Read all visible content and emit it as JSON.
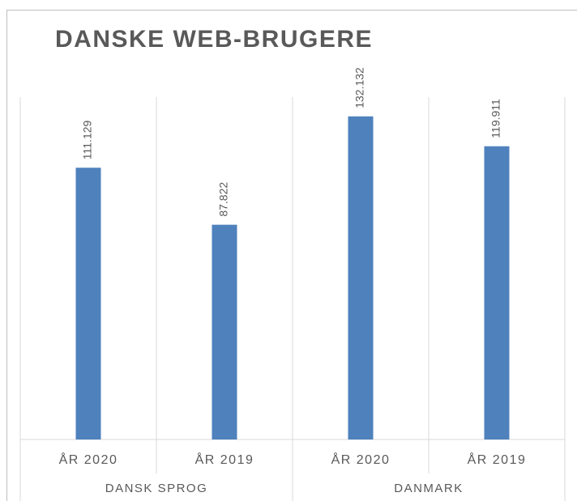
{
  "chart_data": {
    "type": "bar",
    "title": "DANSKE WEB-BRUGERE",
    "groups": [
      {
        "name": "DANSK SPROG",
        "categories": [
          "ÅR 2020",
          "ÅR 2019"
        ],
        "values": [
          111129,
          87822
        ],
        "value_labels": [
          "111.129",
          "87.822"
        ]
      },
      {
        "name": "DANMARK",
        "categories": [
          "ÅR 2020",
          "ÅR 2019"
        ],
        "values": [
          132132,
          119911
        ],
        "value_labels": [
          "132.132",
          "119.911"
        ]
      }
    ],
    "color": "#4f81bd",
    "ylim": [
      0,
      140000
    ]
  }
}
